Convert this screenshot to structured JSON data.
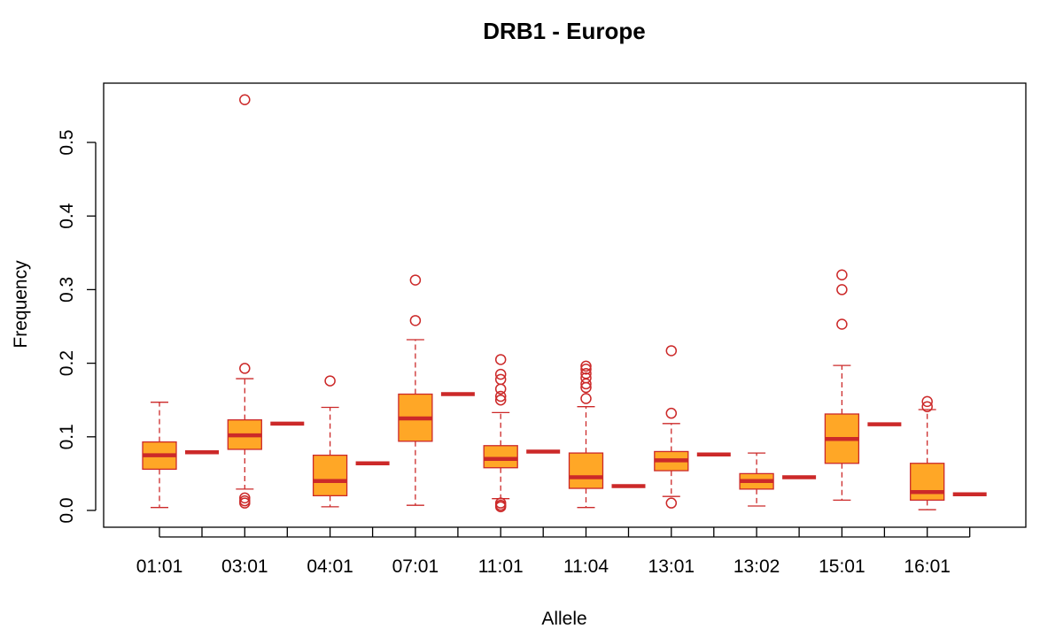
{
  "chart_data": {
    "type": "boxplot",
    "title": "DRB1 - Europe",
    "xlabel": "Allele",
    "ylabel": "Frequency",
    "ylim": [
      -0.022,
      0.58
    ],
    "yticks": [
      "0.0",
      "0.1",
      "0.2",
      "0.3",
      "0.4",
      "0.5"
    ],
    "ytick_values": [
      0,
      0.1,
      0.2,
      0.3,
      0.4,
      0.5
    ],
    "categories": [
      "01:01",
      "03:01",
      "04:01",
      "07:01",
      "11:01",
      "11:04",
      "13:01",
      "13:02",
      "15:01",
      "16:01"
    ],
    "boxes": [
      {
        "allele": "01:01",
        "whisker_low": 0.004,
        "q1": 0.056,
        "median": 0.075,
        "q3": 0.093,
        "whisker_high": 0.147,
        "outliers": [],
        "reference": 0.079
      },
      {
        "allele": "03:01",
        "whisker_low": 0.029,
        "q1": 0.083,
        "median": 0.102,
        "q3": 0.123,
        "whisker_high": 0.179,
        "outliers": [
          0.558,
          0.193,
          0.017,
          0.013,
          0.01
        ],
        "reference": 0.118
      },
      {
        "allele": "04:01",
        "whisker_low": 0.005,
        "q1": 0.02,
        "median": 0.04,
        "q3": 0.075,
        "whisker_high": 0.14,
        "outliers": [
          0.176
        ],
        "reference": 0.064
      },
      {
        "allele": "07:01",
        "whisker_low": 0.007,
        "q1": 0.094,
        "median": 0.125,
        "q3": 0.158,
        "whisker_high": 0.232,
        "outliers": [
          0.313,
          0.258
        ],
        "reference": 0.158
      },
      {
        "allele": "11:01",
        "whisker_low": 0.016,
        "q1": 0.058,
        "median": 0.07,
        "q3": 0.088,
        "whisker_high": 0.133,
        "outliers": [
          0.205,
          0.185,
          0.178,
          0.165,
          0.155,
          0.15,
          0.01,
          0.007,
          0.005
        ],
        "reference": 0.08
      },
      {
        "allele": "11:04",
        "whisker_low": 0.004,
        "q1": 0.03,
        "median": 0.045,
        "q3": 0.078,
        "whisker_high": 0.141,
        "outliers": [
          0.196,
          0.192,
          0.186,
          0.18,
          0.172,
          0.167,
          0.152
        ],
        "reference": 0.033
      },
      {
        "allele": "13:01",
        "whisker_low": 0.019,
        "q1": 0.054,
        "median": 0.068,
        "q3": 0.08,
        "whisker_high": 0.118,
        "outliers": [
          0.217,
          0.132,
          0.01
        ],
        "reference": 0.076
      },
      {
        "allele": "13:02",
        "whisker_low": 0.006,
        "q1": 0.029,
        "median": 0.04,
        "q3": 0.05,
        "whisker_high": 0.078,
        "outliers": [],
        "reference": 0.045
      },
      {
        "allele": "15:01",
        "whisker_low": 0.014,
        "q1": 0.064,
        "median": 0.097,
        "q3": 0.131,
        "whisker_high": 0.197,
        "outliers": [
          0.32,
          0.3,
          0.253
        ],
        "reference": 0.117
      },
      {
        "allele": "16:01",
        "whisker_low": 0.001,
        "q1": 0.014,
        "median": 0.025,
        "q3": 0.064,
        "whisker_high": 0.137,
        "outliers": [
          0.148,
          0.141
        ],
        "reference": 0.022
      }
    ],
    "colors": {
      "box_fill": "#FFA726",
      "box_border": "#CC2929",
      "median": "#CC2929",
      "whisker": "#CC2929",
      "outlier": "#CC2929",
      "reference": "#CC2929"
    },
    "grid": false,
    "legend": "none"
  }
}
